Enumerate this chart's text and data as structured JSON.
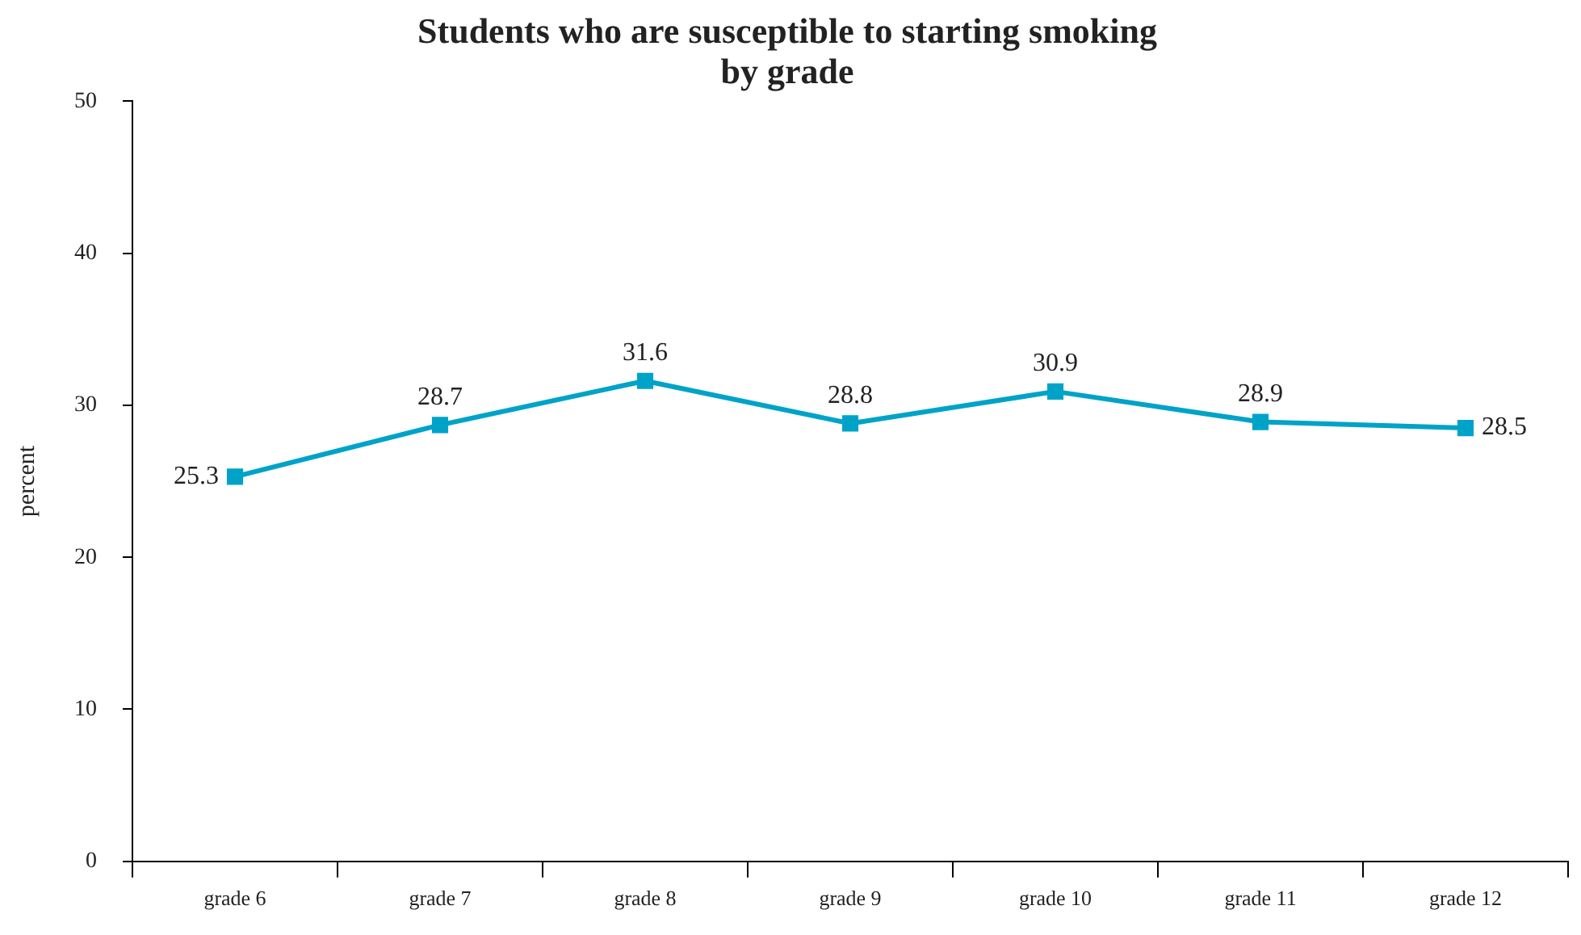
{
  "chart_data": {
    "type": "line",
    "title": "Students who are susceptible to starting smoking\nby grade",
    "ylabel": "percent",
    "categories": [
      "grade 6",
      "grade 7",
      "grade 8",
      "grade 9",
      "grade 10",
      "grade 11",
      "grade 12"
    ],
    "series": [
      {
        "color": "#00a3c8",
        "values": [
          25.3,
          28.7,
          31.6,
          28.8,
          30.9,
          28.9,
          28.5
        ]
      }
    ],
    "ylim": [
      0,
      50
    ],
    "yticks": [
      0,
      10,
      20,
      30,
      40,
      50
    ],
    "grid": false,
    "legend": false,
    "marker": "square",
    "line_style": "solid",
    "data_labels": true
  }
}
